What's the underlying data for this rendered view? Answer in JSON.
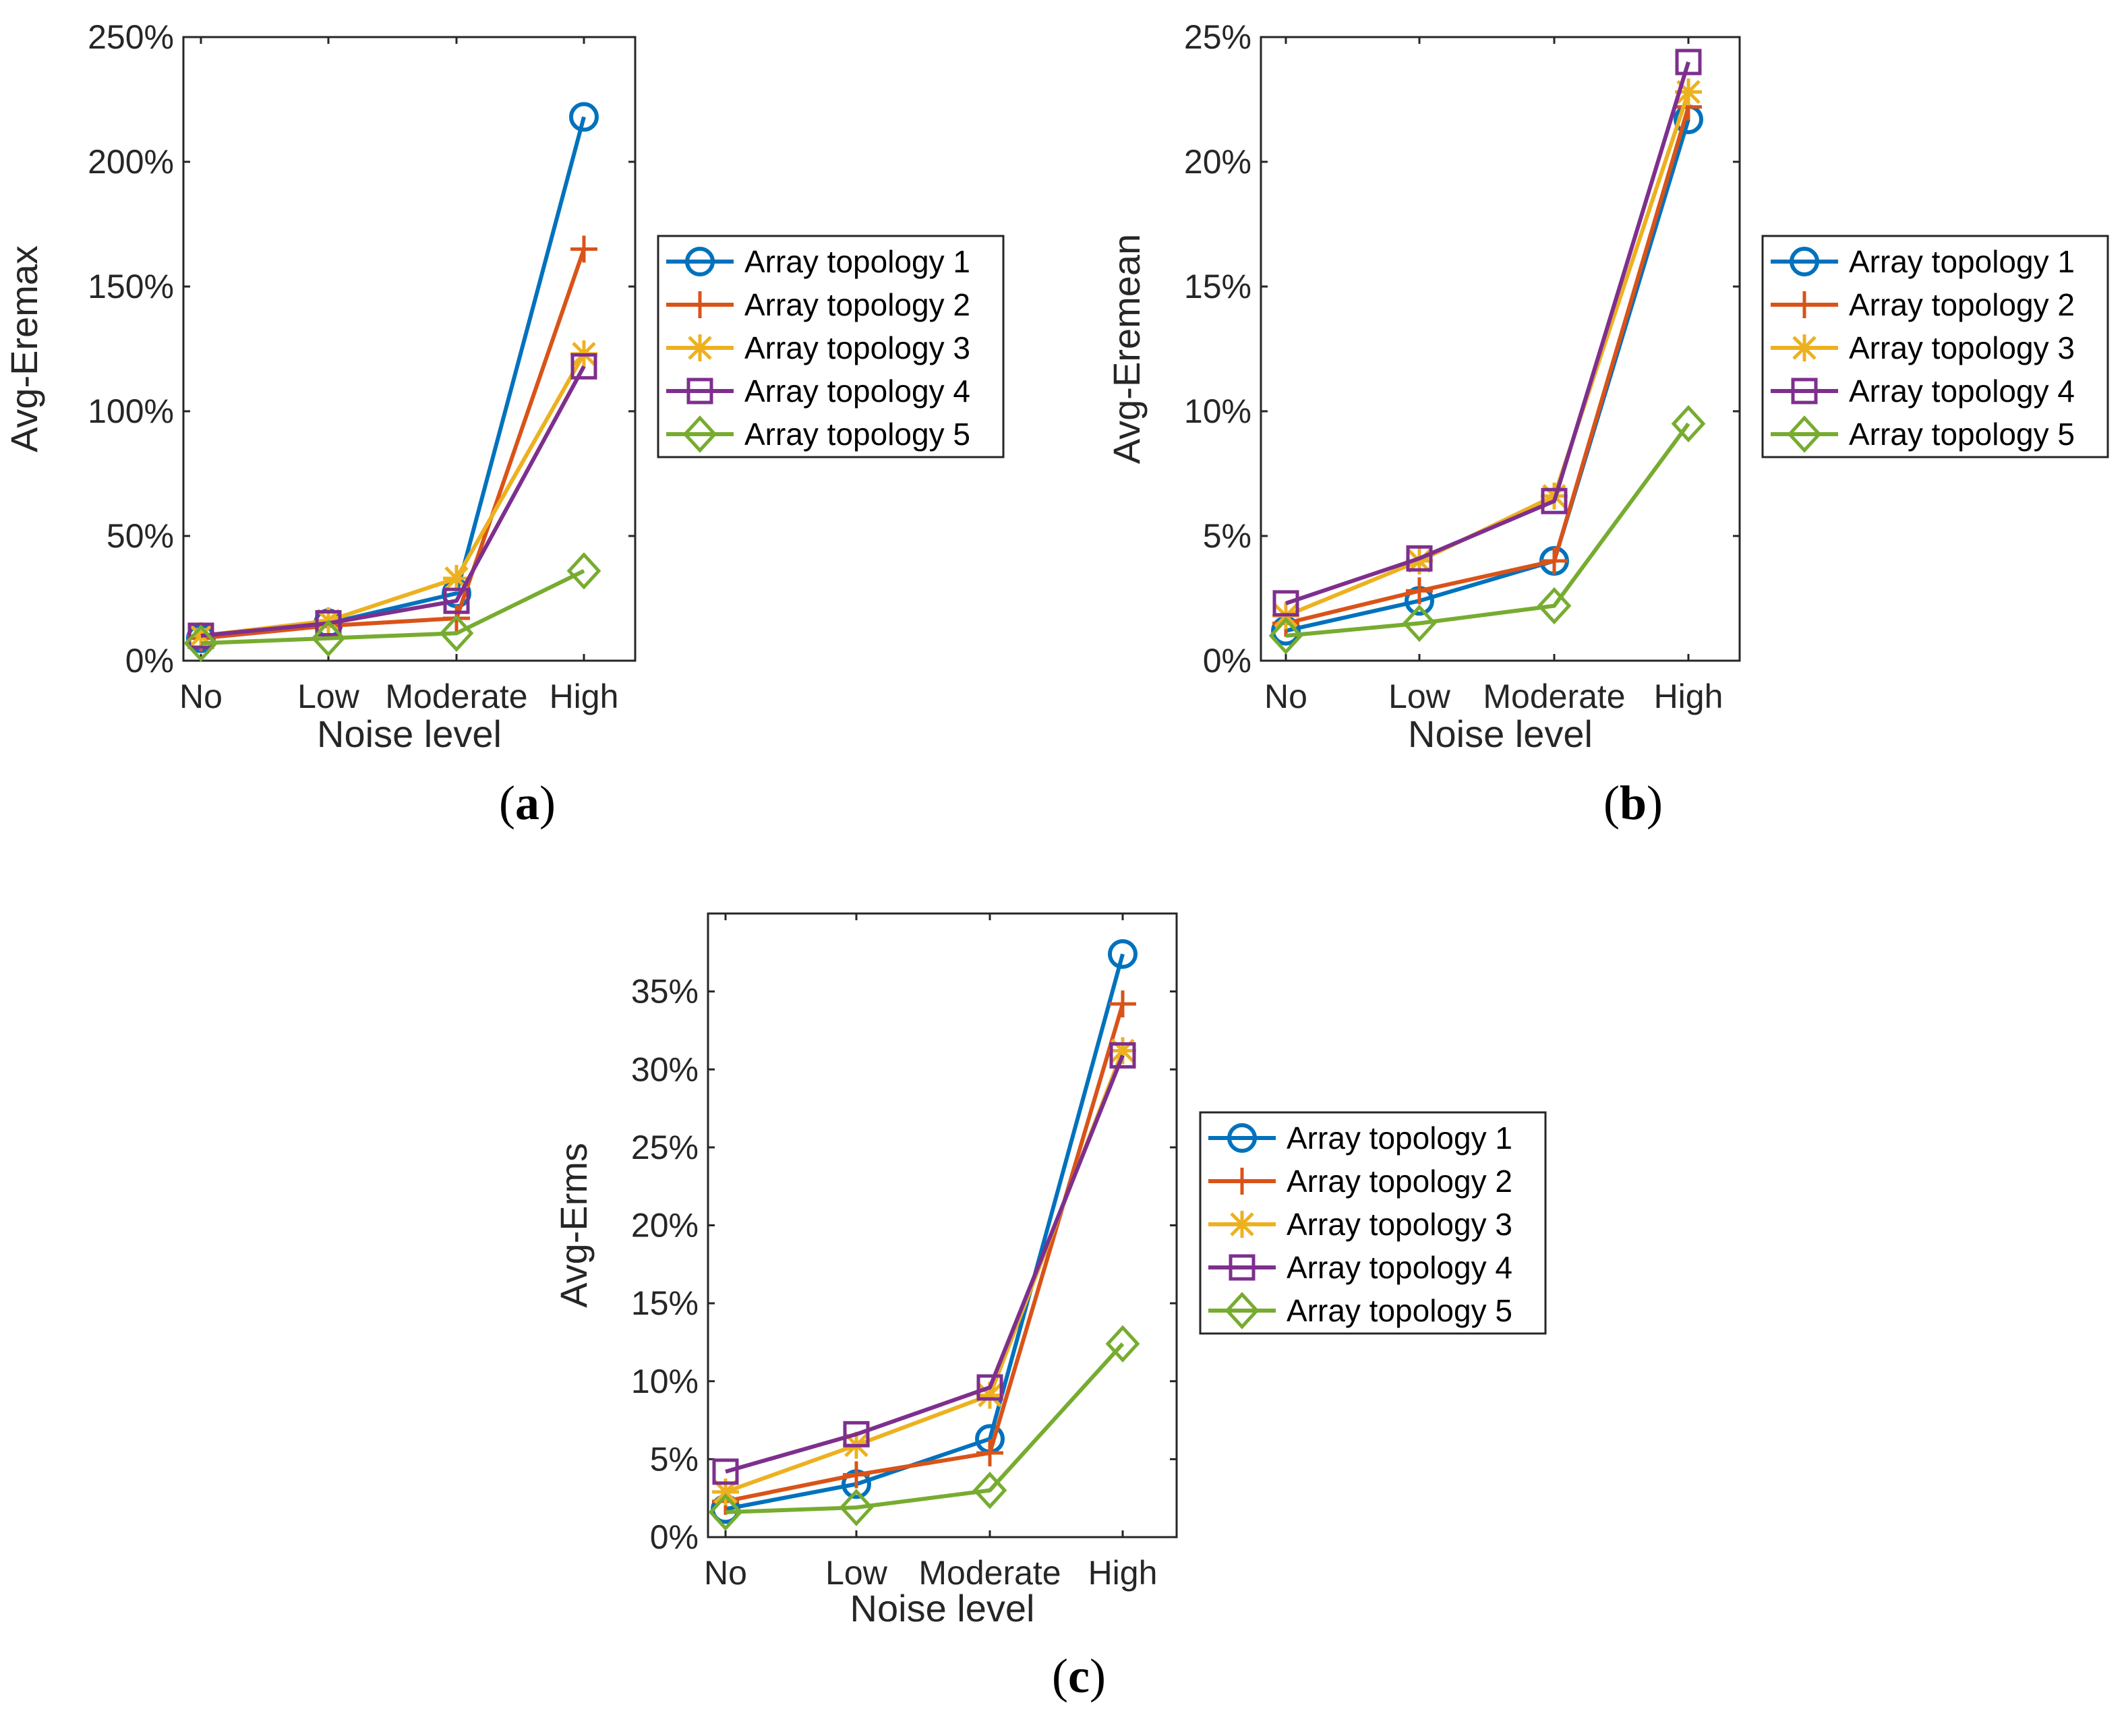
{
  "chart_data": [
    {
      "type": "line",
      "panel_label": "a",
      "title": "",
      "xlabel": "Noise level",
      "ylabel": "Avg-Eremax",
      "categories": [
        "No",
        "Low",
        "Moderate",
        "High"
      ],
      "ylim": [
        0,
        250
      ],
      "yticks": [
        0,
        50,
        100,
        150,
        200,
        250
      ],
      "ytick_labels": [
        "0%",
        "50%",
        "100%",
        "150%",
        "200%",
        "250%"
      ],
      "grid": false,
      "legend_position": "right",
      "series": [
        {
          "name": "Array topology 1",
          "marker": "circle",
          "values": [
            9,
            15,
            27,
            218
          ]
        },
        {
          "name": "Array topology 2",
          "marker": "plus",
          "values": [
            9,
            14,
            17,
            165
          ]
        },
        {
          "name": "Array topology 3",
          "marker": "asterisk",
          "values": [
            10,
            16,
            33,
            123
          ]
        },
        {
          "name": "Array topology 4",
          "marker": "square",
          "values": [
            10,
            15,
            24,
            118
          ]
        },
        {
          "name": "Array topology 5",
          "marker": "diamond",
          "values": [
            7,
            9,
            11,
            36
          ]
        }
      ]
    },
    {
      "type": "line",
      "panel_label": "b",
      "title": "",
      "xlabel": "Noise level",
      "ylabel": "Avg-Eremean",
      "categories": [
        "No",
        "Low",
        "Moderate",
        "High"
      ],
      "ylim": [
        0,
        25
      ],
      "yticks": [
        0,
        5,
        10,
        15,
        20,
        25
      ],
      "ytick_labels": [
        "0%",
        "5%",
        "10%",
        "15%",
        "20%",
        "25%"
      ],
      "grid": false,
      "legend_position": "right",
      "series": [
        {
          "name": "Array topology 1",
          "marker": "circle",
          "values": [
            1.2,
            2.4,
            4.0,
            21.7
          ]
        },
        {
          "name": "Array topology 2",
          "marker": "plus",
          "values": [
            1.5,
            2.8,
            4.0,
            22.2
          ]
        },
        {
          "name": "Array topology 3",
          "marker": "asterisk",
          "values": [
            1.8,
            4.0,
            6.6,
            22.8
          ]
        },
        {
          "name": "Array topology 4",
          "marker": "square",
          "values": [
            2.3,
            4.1,
            6.4,
            24.0
          ]
        },
        {
          "name": "Array topology 5",
          "marker": "diamond",
          "values": [
            1.0,
            1.5,
            2.2,
            9.5
          ]
        }
      ]
    },
    {
      "type": "line",
      "panel_label": "c",
      "title": "",
      "xlabel": "Noise level",
      "ylabel": "Avg-Erms",
      "categories": [
        "No",
        "Low",
        "Moderate",
        "High"
      ],
      "ylim": [
        0,
        40
      ],
      "yticks": [
        0,
        5,
        10,
        15,
        20,
        25,
        30,
        35
      ],
      "ytick_labels": [
        "0%",
        "5%",
        "10%",
        "15%",
        "20%",
        "25%",
        "30%",
        "35%"
      ],
      "grid": false,
      "legend_position": "right",
      "series": [
        {
          "name": "Array topology 1",
          "marker": "circle",
          "values": [
            1.8,
            3.4,
            6.3,
            37.4
          ]
        },
        {
          "name": "Array topology 2",
          "marker": "plus",
          "values": [
            2.3,
            4.0,
            5.4,
            34.2
          ]
        },
        {
          "name": "Array topology 3",
          "marker": "asterisk",
          "values": [
            2.9,
            5.9,
            9.1,
            31.2
          ]
        },
        {
          "name": "Array topology 4",
          "marker": "square",
          "values": [
            4.2,
            6.6,
            9.6,
            30.9
          ]
        },
        {
          "name": "Array topology 5",
          "marker": "diamond",
          "values": [
            1.6,
            1.9,
            3.0,
            12.4
          ]
        }
      ]
    }
  ],
  "colors": {
    "series": [
      "#0072BD",
      "#D95319",
      "#EDB120",
      "#7E2F8E",
      "#77AC30"
    ],
    "axis": "#262626",
    "legend_border": "#262626",
    "background": "#ffffff"
  }
}
